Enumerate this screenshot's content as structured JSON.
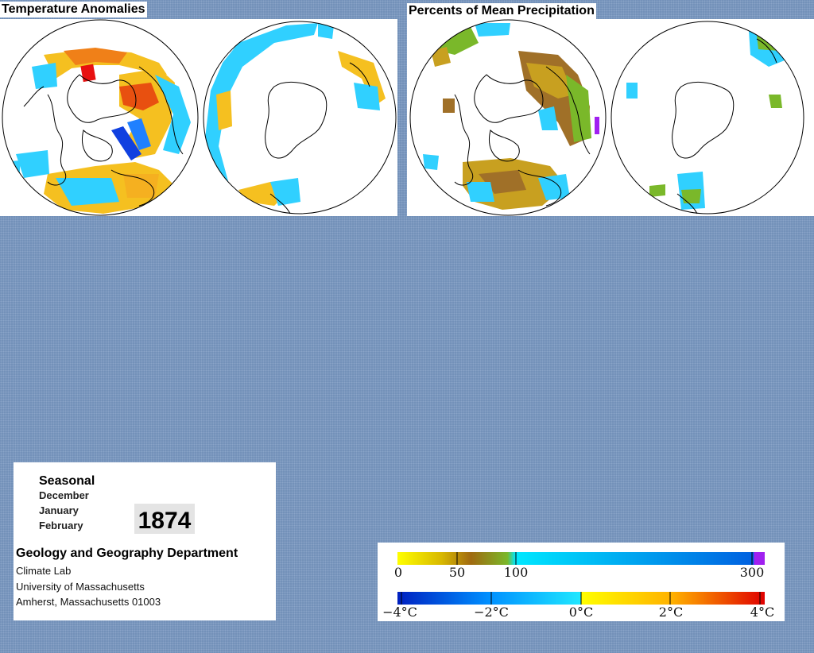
{
  "titles": {
    "temperature": "Temperature Anomalies",
    "precipitation": "Percents of Mean Precipitation"
  },
  "info": {
    "season": "Seasonal",
    "months": [
      "December",
      "January",
      "February"
    ],
    "year": "1874",
    "department": "Geology and Geography Department",
    "lines": [
      "Climate Lab",
      "University of Massachusetts",
      "Amherst, Massachusetts 01003"
    ]
  },
  "legend": {
    "precipitation": {
      "ticks": [
        "0",
        "50",
        "100",
        "300"
      ],
      "colors": [
        "#ffff00",
        "#c8a000",
        "#a06a10",
        "#7ab82a",
        "#00e8ff",
        "#0060e0",
        "#a020f0"
      ]
    },
    "temperature": {
      "ticks": [
        "−4°C",
        "−2°C",
        "0°C",
        "2°C",
        "4°C"
      ],
      "colors": [
        "#0020c0",
        "#0080ff",
        "#20d8ff",
        "#ffff00",
        "#ffb000",
        "#ff4000",
        "#e00000"
      ]
    }
  }
}
